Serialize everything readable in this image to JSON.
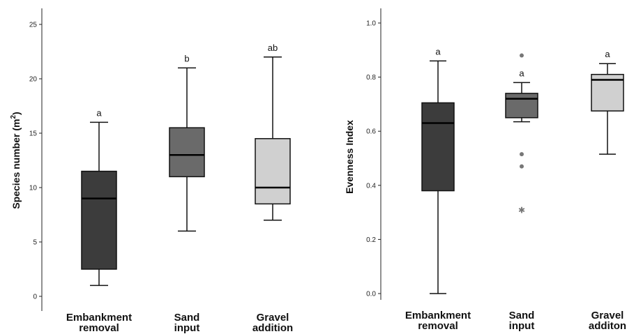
{
  "chart_data": [
    {
      "type": "box",
      "ylabel": "Species number (m",
      "ylabel_sup": "2",
      "ylabel_end": ")",
      "ylim": [
        0,
        27
      ],
      "yticks": [
        "0",
        "5",
        "10",
        "15",
        "20",
        "25"
      ],
      "categories": [
        {
          "line1": "Embankment",
          "line2": "removal"
        },
        {
          "line1": "Sand",
          "line2": "input"
        },
        {
          "line1": "Gravel",
          "line2": "addition"
        }
      ],
      "boxes": [
        {
          "min": 1,
          "q1": 2.5,
          "median": 9,
          "q3": 11.5,
          "max": 16,
          "letter": "a",
          "color": "#3c3c3c"
        },
        {
          "min": 6,
          "q1": 11,
          "median": 13,
          "q3": 15.5,
          "max": 21,
          "letter": "b",
          "color": "#6a6a6a"
        },
        {
          "min": 7,
          "q1": 8.5,
          "median": 10,
          "q3": 14.5,
          "max": 22,
          "letter": "ab",
          "color": "#d0d0d0"
        }
      ]
    },
    {
      "type": "box",
      "ylabel": "Evenness Index",
      "ylim": [
        -0.05,
        1.05
      ],
      "yticks": [
        "0.0",
        "0.2",
        "0.4",
        "0.6",
        "0.8",
        "1.0"
      ],
      "categories": [
        {
          "line1": "Embankment",
          "line2": "removal"
        },
        {
          "line1": "Sand",
          "line2": "input"
        },
        {
          "line1": "Gravel",
          "line2": "additon"
        }
      ],
      "boxes": [
        {
          "min": 0.0,
          "q1": 0.38,
          "median": 0.63,
          "q3": 0.705,
          "max": 0.86,
          "letter": "a",
          "color": "#3c3c3c",
          "outliers": [],
          "extremes": []
        },
        {
          "min": 0.635,
          "q1": 0.65,
          "median": 0.72,
          "q3": 0.74,
          "max": 0.78,
          "letter": "a",
          "color": "#6a6a6a",
          "outliers": [
            0.88,
            0.515,
            0.47
          ],
          "extremes": [
            0.31
          ]
        },
        {
          "min": 0.515,
          "q1": 0.675,
          "median": 0.79,
          "q3": 0.81,
          "max": 0.85,
          "letter": "a",
          "color": "#d0d0d0",
          "outliers": [],
          "extremes": []
        }
      ]
    }
  ]
}
